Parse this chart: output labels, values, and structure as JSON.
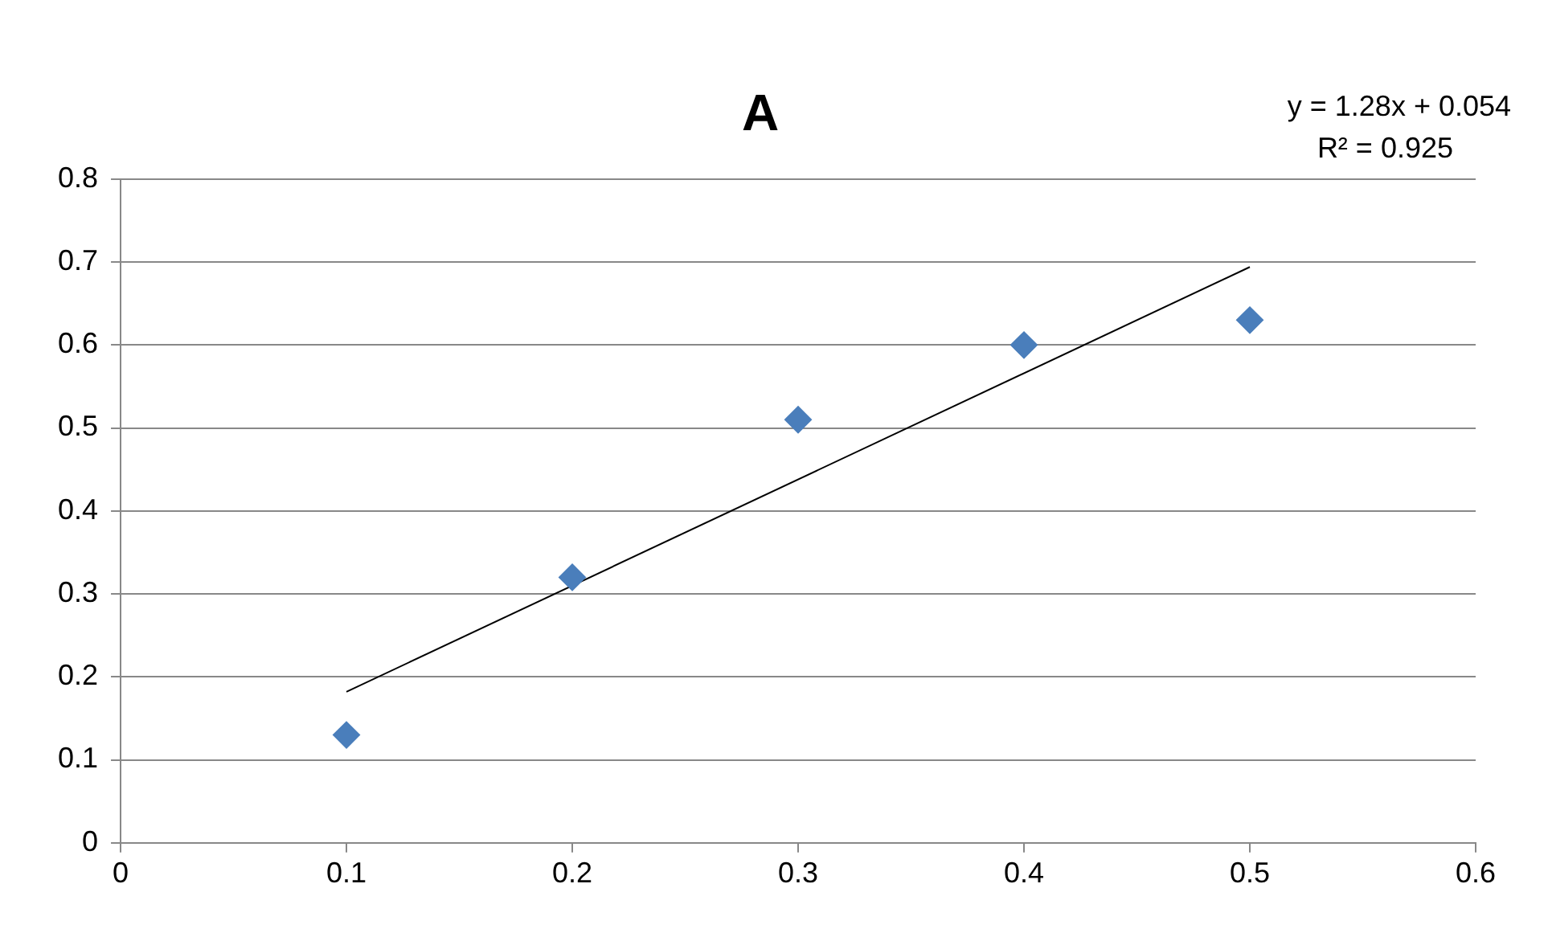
{
  "chart_data": {
    "type": "scatter",
    "title": "A",
    "annotations": [
      "y = 1.28x + 0.054",
      "R² = 0.925"
    ],
    "series": [
      {
        "type": "scatter",
        "color": "#4a7ebb",
        "x": [
          0.1,
          0.2,
          0.3,
          0.4,
          0.5
        ],
        "values": [
          0.13,
          0.32,
          0.51,
          0.6,
          0.63
        ]
      },
      {
        "type": "line",
        "color": "#000000",
        "marker": "none",
        "x": [
          0.1,
          0.5
        ],
        "values": [
          0.182,
          0.694
        ]
      }
    ],
    "xlim": [
      0,
      0.6
    ],
    "xticks": [
      0,
      0.1,
      0.2,
      0.3,
      0.4,
      0.5,
      0.6
    ],
    "ylim": [
      0,
      0.8
    ],
    "yticks": [
      0,
      0.1,
      0.2,
      0.3,
      0.4,
      0.5,
      0.6,
      0.7,
      0.8
    ],
    "grid": "y",
    "legend": false,
    "marker": "diamond"
  }
}
